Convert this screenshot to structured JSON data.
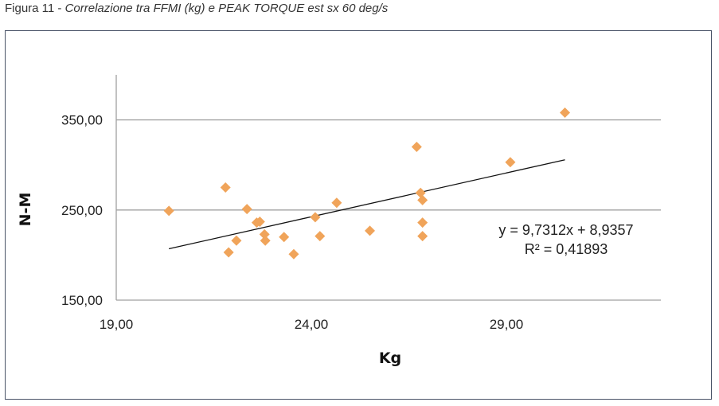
{
  "caption": {
    "label": "Figura 11 -",
    "text": "Correlazione tra FFMI (kg) e PEAK TORQUE est sx 60 deg/s"
  },
  "chart_data": {
    "type": "scatter",
    "title": "",
    "xlabel": "Kg",
    "ylabel": "N-M",
    "xlim": [
      19,
      33
    ],
    "ylim": [
      150,
      400
    ],
    "xticks": [
      19,
      24,
      29
    ],
    "yticks": [
      150,
      250,
      350
    ],
    "xtick_labels": [
      "19,00",
      "24,00",
      "29,00"
    ],
    "ytick_labels": [
      "150,00",
      "250,00",
      "350,00"
    ],
    "grid": "horizontal",
    "marker_color": "#f0a45a",
    "trendline_color": "#111111",
    "points": [
      {
        "x": 20.35,
        "y": 249
      },
      {
        "x": 21.8,
        "y": 275
      },
      {
        "x": 21.88,
        "y": 203
      },
      {
        "x": 22.08,
        "y": 216
      },
      {
        "x": 22.35,
        "y": 251
      },
      {
        "x": 22.6,
        "y": 236
      },
      {
        "x": 22.68,
        "y": 237
      },
      {
        "x": 22.8,
        "y": 223
      },
      {
        "x": 22.82,
        "y": 216
      },
      {
        "x": 23.3,
        "y": 220
      },
      {
        "x": 23.55,
        "y": 201
      },
      {
        "x": 24.1,
        "y": 242
      },
      {
        "x": 24.22,
        "y": 221
      },
      {
        "x": 24.65,
        "y": 258
      },
      {
        "x": 25.5,
        "y": 227
      },
      {
        "x": 26.7,
        "y": 320
      },
      {
        "x": 26.8,
        "y": 269
      },
      {
        "x": 26.85,
        "y": 261
      },
      {
        "x": 26.85,
        "y": 236
      },
      {
        "x": 26.85,
        "y": 221
      },
      {
        "x": 29.1,
        "y": 303
      },
      {
        "x": 30.5,
        "y": 358
      }
    ],
    "trendline": {
      "x": [
        20.35,
        30.5
      ],
      "equation": "y = 9,7312x + 8,9357",
      "r_squared": "R² = 0,41893"
    }
  }
}
